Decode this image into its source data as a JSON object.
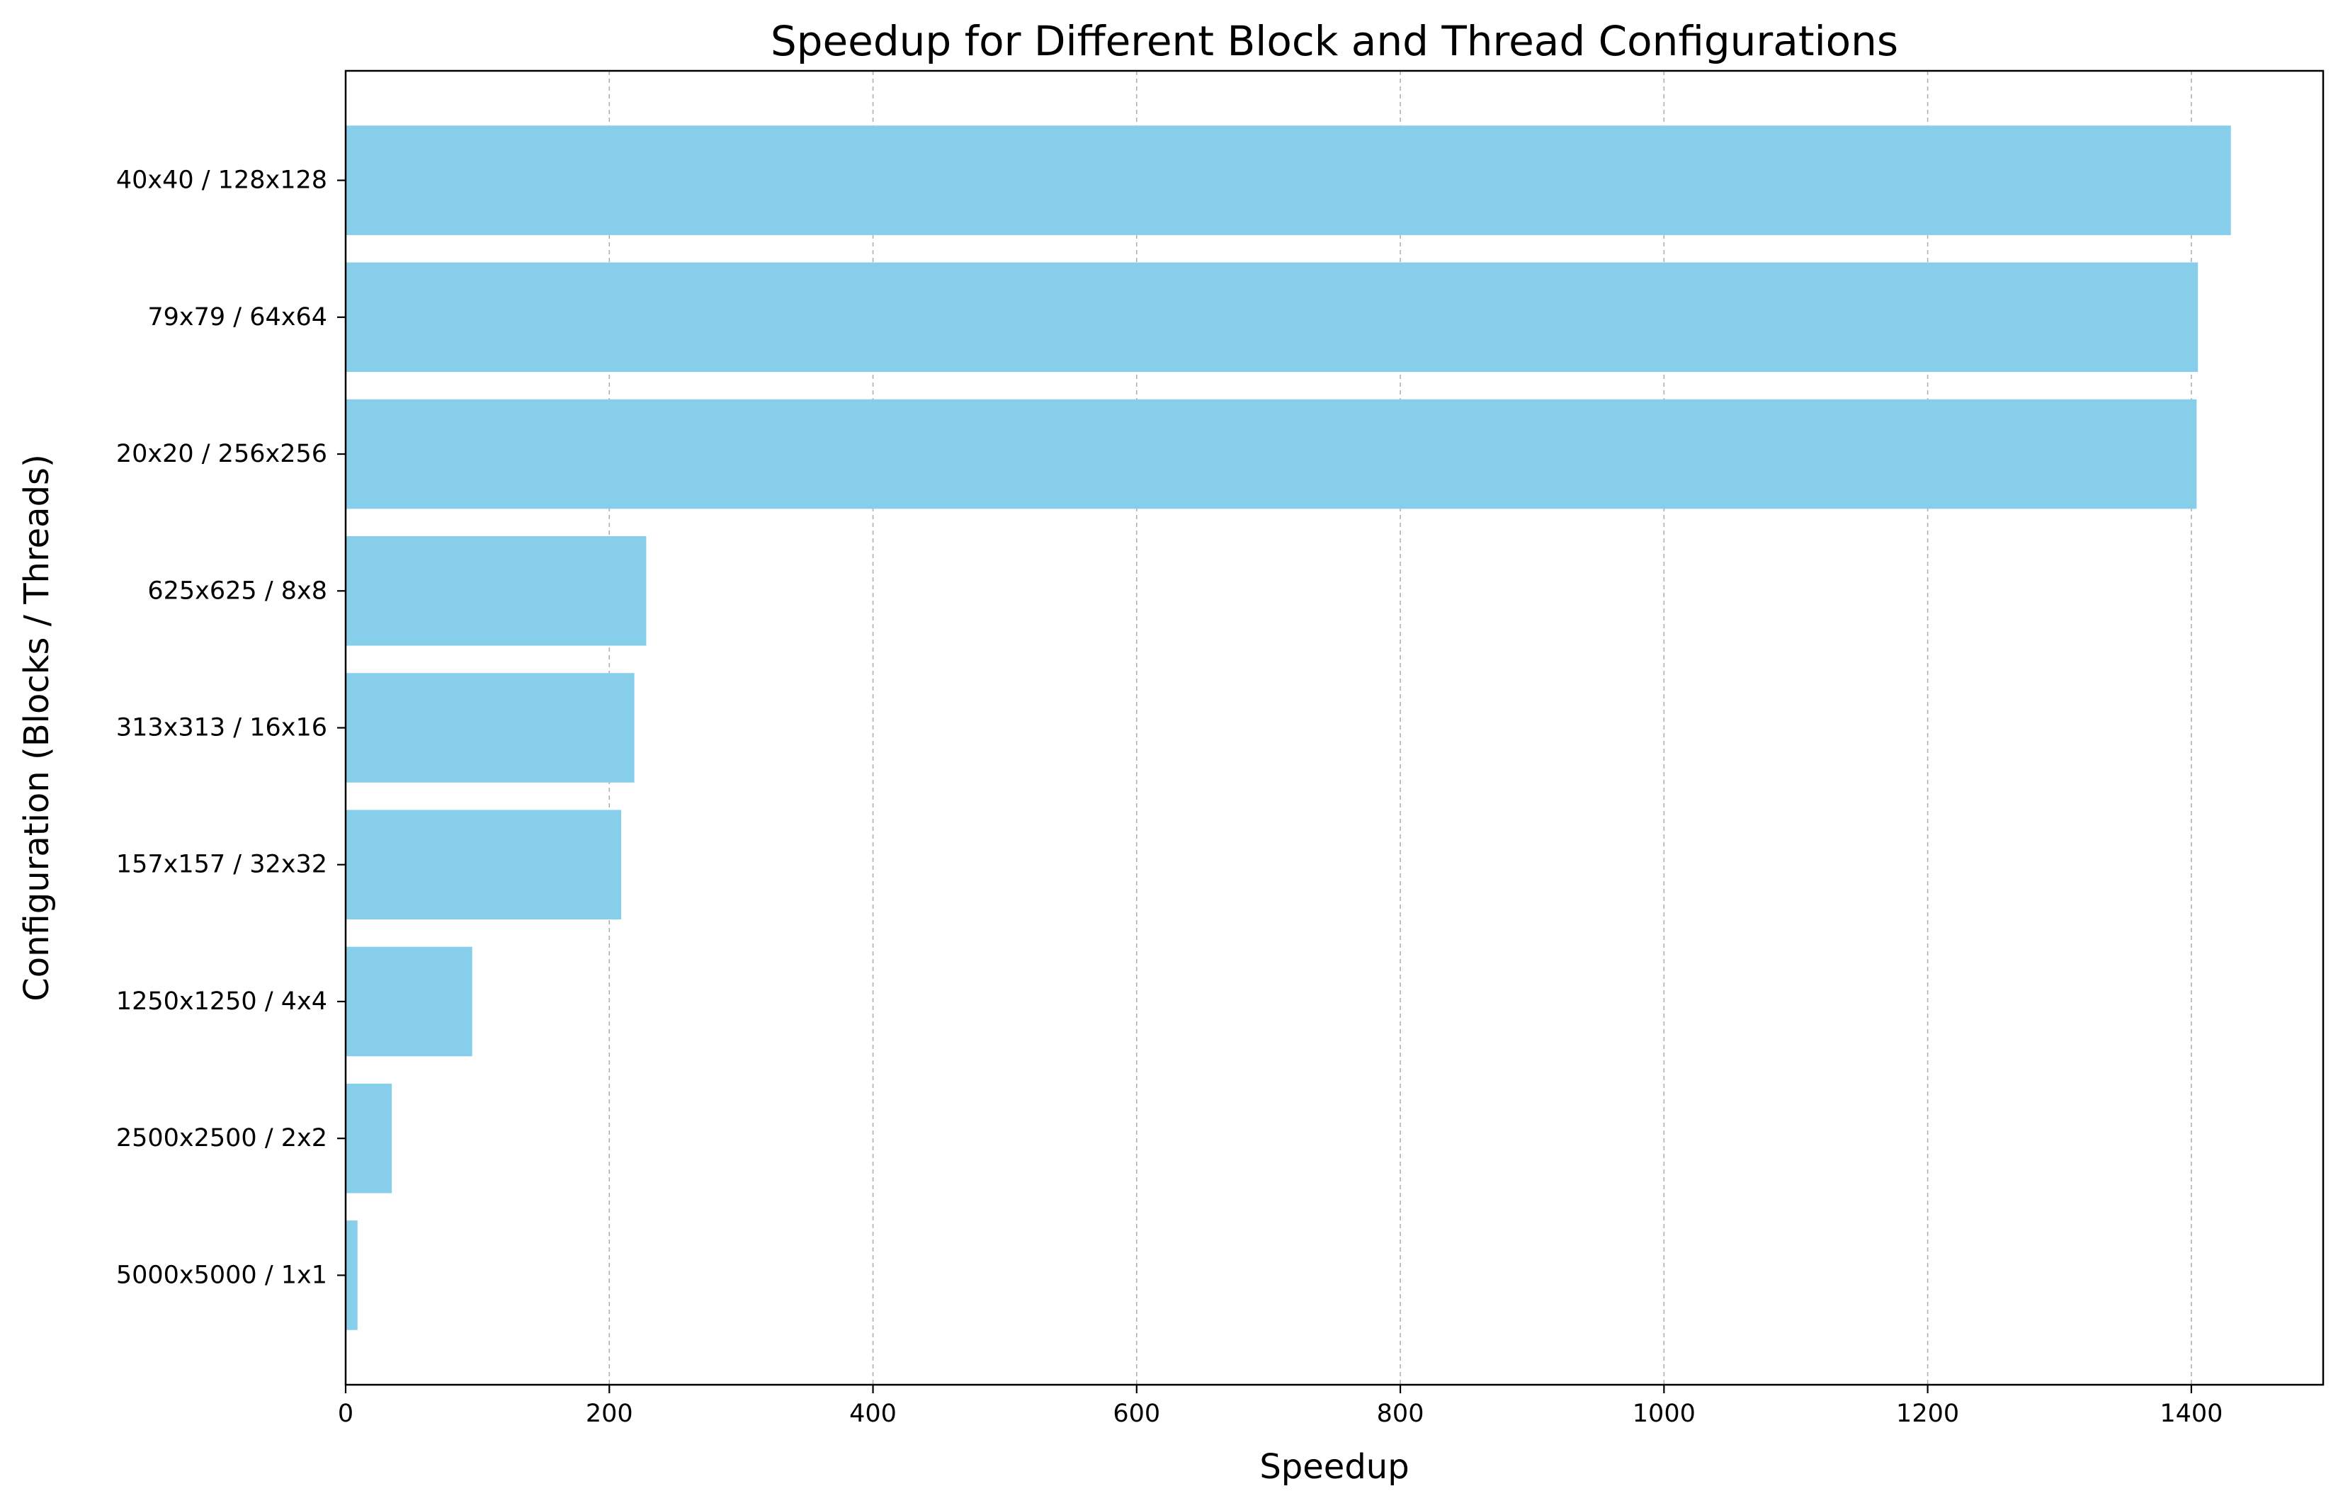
{
  "chart_data": {
    "type": "bar",
    "orientation": "horizontal",
    "title": "Speedup for Different Block and Thread Configurations",
    "xlabel": "Speedup",
    "ylabel": "Configuration (Blocks / Threads)",
    "categories": [
      "5000x5000 / 1x1",
      "2500x2500 / 2x2",
      "1250x1250 / 4x4",
      "157x157 / 32x32",
      "313x313 / 16x16",
      "625x625 / 8x8",
      "20x20 / 256x256",
      "79x79 / 64x64",
      "40x40 / 128x128"
    ],
    "values": [
      9,
      35,
      96,
      209,
      219,
      228,
      1404,
      1405,
      1430
    ],
    "xlim": [
      0,
      1500
    ],
    "xticks": [
      0,
      200,
      400,
      600,
      800,
      1000,
      1200,
      1400
    ],
    "grid": "x-dashed",
    "bar_color": "#87CEEB"
  }
}
